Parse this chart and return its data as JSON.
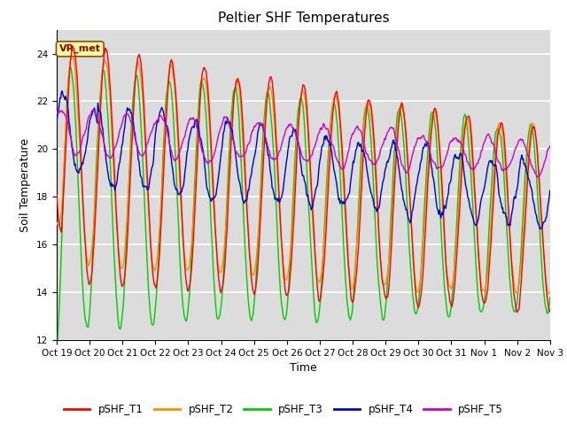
{
  "title": "Peltier SHF Temperatures",
  "xlabel": "Time",
  "ylabel": "Soil Temperature",
  "ylim": [
    12,
    25
  ],
  "yticks": [
    12,
    14,
    16,
    18,
    20,
    22,
    24
  ],
  "bg_color": "#dcdcdc",
  "annotation_text": "VR_met",
  "annotation_color": "#8B0000",
  "annotation_bg": "#FFFF99",
  "line_colors": {
    "T1": "#FF0000",
    "T2": "#FF8C00",
    "T3": "#00CC00",
    "T4": "#0000CC",
    "T5": "#CC00CC"
  },
  "legend_labels": [
    "pSHF_T1",
    "pSHF_T2",
    "pSHF_T3",
    "pSHF_T4",
    "pSHF_T5"
  ],
  "xtick_labels": [
    "Oct 19",
    "Oct 20",
    "Oct 21",
    "Oct 22",
    "Oct 23",
    "Oct 24",
    "Oct 25",
    "Oct 26",
    "Oct 27",
    "Oct 28",
    "Oct 29",
    "Oct 30",
    "Oct 31",
    "Nov 1",
    "Nov 2",
    "Nov 3"
  ],
  "n_days": 15,
  "pts_per_day": 48
}
